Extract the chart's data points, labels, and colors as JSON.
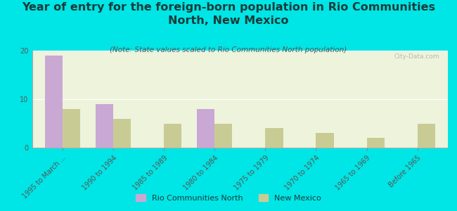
{
  "title": "Year of entry for the foreign-born population in Rio Communities\nNorth, New Mexico",
  "subtitle": "(Note: State values scaled to Rio Communities North population)",
  "categories": [
    "1995 to March ...",
    "1990 to 1994",
    "1985 to 1989",
    "1980 to 1984",
    "1975 to 1979",
    "1970 to 1974",
    "1965 to 1969",
    "Before 1965"
  ],
  "rio_values": [
    19,
    9,
    0,
    8,
    0,
    0,
    0,
    0
  ],
  "nm_values": [
    8,
    6,
    5,
    5,
    4,
    3,
    2,
    5
  ],
  "rio_color": "#c9a8d4",
  "nm_color": "#c8cc94",
  "background_color": "#00e5e5",
  "plot_bg_color": "#eef3dc",
  "ylim": [
    0,
    20
  ],
  "yticks": [
    0,
    10,
    20
  ],
  "bar_width": 0.35,
  "watermark": "City-Data.com",
  "legend_label_rio": "Rio Communities North",
  "legend_label_nm": "New Mexico",
  "title_fontsize": 11.5,
  "subtitle_fontsize": 7.5,
  "tick_fontsize": 7,
  "title_color": "#1a3a3a",
  "subtitle_color": "#555555",
  "tick_color": "#555555"
}
